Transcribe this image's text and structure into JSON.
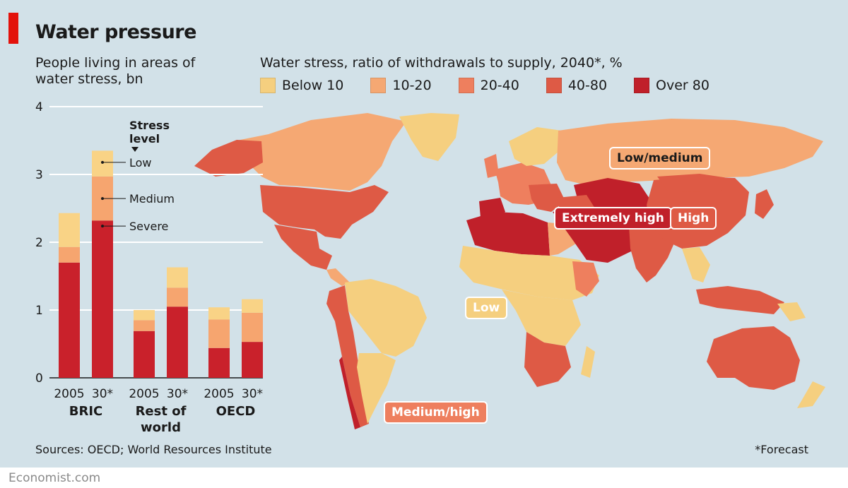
{
  "title": "Water pressure",
  "subtitle": "People living in areas of water stress, bn",
  "source": "Sources: OECD; World Resources Institute",
  "forecast_note": "*Forecast",
  "brand": "Economist.com",
  "colors": {
    "low": "#f9d386",
    "medium": "#f6a56f",
    "severe": "#c9212b",
    "stress_below_10": "#f5cf7f",
    "stress_10_20": "#f5a873",
    "stress_20_40": "#ee7f5e",
    "stress_40_80": "#de5a45",
    "stress_over_80": "#c0202a",
    "accent": "#e3120b",
    "background": "#d2e1e8"
  },
  "map": {
    "legend_title": "Water stress, ratio of withdrawals to supply, 2040*, %",
    "legend": [
      {
        "label": "Below 10",
        "color": "#f5cf7f"
      },
      {
        "label": "10-20",
        "color": "#f5a873"
      },
      {
        "label": "20-40",
        "color": "#ee7f5e"
      },
      {
        "label": "40-80",
        "color": "#de5a45"
      },
      {
        "label": "Over 80",
        "color": "#c0202a"
      }
    ],
    "region_labels": [
      {
        "label": "Low/medium",
        "color": "#f5a873"
      },
      {
        "label": "Extremely high",
        "color": "#c0202a"
      },
      {
        "label": "High",
        "color": "#de5a45"
      },
      {
        "label": "Low",
        "color": "#f5cf7f"
      },
      {
        "label": "Medium/high",
        "color": "#ee7f5e"
      }
    ]
  },
  "chart_data": {
    "type": "bar",
    "stacked": true,
    "groups": [
      "BRIC",
      "Rest of world",
      "OECD"
    ],
    "group_labels": [
      [
        "BRIC"
      ],
      [
        "Rest of",
        "world"
      ],
      [
        "OECD"
      ]
    ],
    "categories": [
      "2005",
      "30*",
      "2005",
      "30*",
      "2005",
      "30*"
    ],
    "legend_title": "Stress level",
    "series": [
      {
        "name": "Severe",
        "values": [
          1.7,
          2.32,
          0.69,
          1.05,
          0.44,
          0.53
        ]
      },
      {
        "name": "Medium",
        "values": [
          0.23,
          0.65,
          0.16,
          0.28,
          0.42,
          0.43
        ]
      },
      {
        "name": "Low",
        "values": [
          0.5,
          0.38,
          0.15,
          0.3,
          0.18,
          0.2
        ]
      }
    ],
    "ylim": [
      0,
      4
    ],
    "yticks": [
      0,
      1,
      2,
      3,
      4
    ],
    "grid": true
  }
}
